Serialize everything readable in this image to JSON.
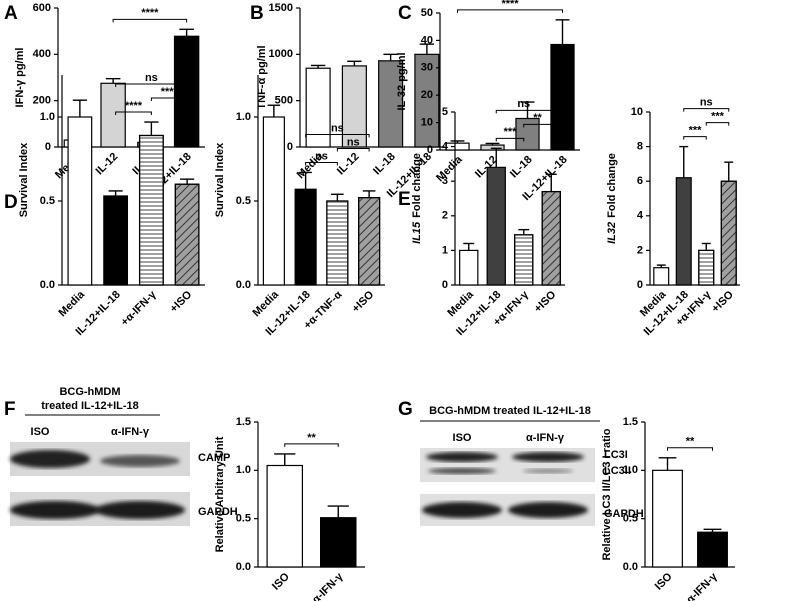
{
  "chart_data": [
    {
      "type": "bar",
      "panel": "A",
      "ylabel": "IFN-γ pg/ml",
      "categories": [
        "Media",
        "IL-12",
        "IL-18",
        "IL-12+IL-18"
      ],
      "values": [
        30,
        275,
        20,
        478
      ],
      "errors": [
        5,
        20,
        5,
        30
      ],
      "colors": [
        "#ffffff",
        "#d4d4d4",
        "#808080",
        "#000000"
      ],
      "patterns": [
        "solid",
        "solid",
        "solid",
        "solid"
      ],
      "ylim": [
        0,
        600
      ],
      "yticks": [
        0,
        200,
        400,
        600
      ],
      "significance": [
        {
          "from": 1,
          "to": 3,
          "label": "****"
        }
      ]
    },
    {
      "type": "bar",
      "panel": "B",
      "ylabel": "TNF-α  pg/ml",
      "categories": [
        "Media",
        "IL-12",
        "IL-18",
        "IL-12+IL-18"
      ],
      "values": [
        850,
        875,
        930,
        1000
      ],
      "errors": [
        30,
        50,
        70,
        110
      ],
      "colors": [
        "#ffffff",
        "#d4d4d4",
        "#808080",
        "#808080"
      ],
      "patterns": [
        "solid",
        "solid",
        "solid",
        "solid"
      ],
      "ylim": [
        0,
        1500
      ],
      "yticks": [
        0,
        500,
        1000,
        1500
      ],
      "significance": []
    },
    {
      "type": "bar",
      "panel": "C",
      "ylabel": "IL-32 pg/ml",
      "categories": [
        "Media",
        "IL-12",
        "IL-18",
        "IL-12+IL-18"
      ],
      "values": [
        2.5,
        1.8,
        11.5,
        38.5
      ],
      "errors": [
        0.8,
        0.6,
        6,
        9
      ],
      "colors": [
        "#ffffff",
        "#d4d4d4",
        "#808080",
        "#000000"
      ],
      "patterns": [
        "solid",
        "solid",
        "solid",
        "solid"
      ],
      "ylim": [
        0,
        50
      ],
      "yticks": [
        0,
        10,
        20,
        30,
        40,
        50
      ],
      "significance": [
        {
          "from": 0,
          "to": 3,
          "label": "****"
        }
      ]
    },
    {
      "type": "bar",
      "panel": "D",
      "ylabel": "Survival Index",
      "categories": [
        "Media",
        "IL-12+IL-18",
        "+α-IFN-γ",
        "+ISO"
      ],
      "values": [
        1.0,
        0.53,
        0.89,
        0.6
      ],
      "errors": [
        0.1,
        0.03,
        0.08,
        0.03
      ],
      "colors": [
        "#ffffff",
        "#000000",
        "#ffffff",
        "#a0a0a0"
      ],
      "patterns": [
        "solid",
        "solid",
        "horizontal",
        "diagonal"
      ],
      "ylim": [
        0,
        1.25
      ],
      "yticks": [
        {
          "value": 0,
          "label": "0.0"
        },
        {
          "value": 0.5,
          "label": "0.5"
        },
        {
          "value": 1,
          "label": "1.0"
        }
      ],
      "significance": [
        {
          "from": 1,
          "to": 2,
          "label": "****"
        },
        {
          "from": 2,
          "to": 3,
          "label": "****"
        },
        {
          "from": 1,
          "to": 3,
          "label": "ns"
        }
      ]
    },
    {
      "type": "bar",
      "ylabel": "Survival Index",
      "categories": [
        "Media",
        "IL-12+IL-18",
        "+α-TNF-α",
        "+ISO"
      ],
      "values": [
        1.0,
        0.57,
        0.5,
        0.52
      ],
      "errors": [
        0.07,
        0.1,
        0.04,
        0.04
      ],
      "colors": [
        "#ffffff",
        "#000000",
        "#ffffff",
        "#a0a0a0"
      ],
      "patterns": [
        "solid",
        "solid",
        "horizontal",
        "diagonal"
      ],
      "ylim": [
        0,
        1.25
      ],
      "yticks": [
        {
          "value": 0,
          "label": "0.0"
        },
        {
          "value": 0.5,
          "label": "0.5"
        },
        {
          "value": 1,
          "label": "1.0"
        }
      ],
      "significance": [
        {
          "from": 1,
          "to": 2,
          "label": "ns"
        },
        {
          "from": 2,
          "to": 3,
          "label": "ns"
        },
        {
          "from": 1,
          "to": 3,
          "label": "ns"
        }
      ]
    },
    {
      "type": "bar",
      "panel": "E",
      "ylabel_gene": "IL15",
      "ylabel": "Fold change",
      "categories": [
        "Media",
        "IL-12+IL-18",
        "+α-IFN-γ",
        "+ISO"
      ],
      "values": [
        1.0,
        3.4,
        1.45,
        2.7
      ],
      "errors": [
        0.2,
        0.55,
        0.15,
        0.5
      ],
      "colors": [
        "#ffffff",
        "#404040",
        "#ffffff",
        "#a0a0a0"
      ],
      "patterns": [
        "solid",
        "solid",
        "horizontal",
        "diagonal"
      ],
      "ylim": [
        0,
        5
      ],
      "yticks": [
        0,
        1,
        2,
        3,
        4,
        5
      ],
      "significance": [
        {
          "from": 1,
          "to": 2,
          "label": "***"
        },
        {
          "from": 2,
          "to": 3,
          "label": "**"
        },
        {
          "from": 1,
          "to": 3,
          "label": "ns"
        }
      ]
    },
    {
      "type": "bar",
      "ylabel_gene": "IL32",
      "ylabel": "Fold change",
      "categories": [
        "Media",
        "IL-12+IL-18",
        "+α-IFN-γ",
        "+ISO"
      ],
      "values": [
        1.0,
        6.2,
        2.0,
        6.0
      ],
      "errors": [
        0.15,
        1.8,
        0.4,
        1.1
      ],
      "colors": [
        "#ffffff",
        "#404040",
        "#ffffff",
        "#a0a0a0"
      ],
      "patterns": [
        "solid",
        "solid",
        "horizontal",
        "diagonal"
      ],
      "ylim": [
        0,
        10
      ],
      "yticks": [
        0,
        2,
        4,
        6,
        8,
        10
      ],
      "significance": [
        {
          "from": 1,
          "to": 2,
          "label": "***"
        },
        {
          "from": 2,
          "to": 3,
          "label": "***"
        },
        {
          "from": 1,
          "to": 3,
          "label": "ns"
        }
      ]
    },
    {
      "type": "bar",
      "panel": "F",
      "ylabel": "Relative Arbitrary Unit",
      "categories": [
        "ISO",
        "α-IFN-γ"
      ],
      "values": [
        1.05,
        0.51
      ],
      "errors": [
        0.12,
        0.12
      ],
      "colors": [
        "#ffffff",
        "#000000"
      ],
      "patterns": [
        "solid",
        "solid"
      ],
      "ylim": [
        0,
        1.5
      ],
      "yticks": [
        {
          "value": 0,
          "label": "0.0"
        },
        {
          "value": 0.5,
          "label": "0.5"
        },
        {
          "value": 1,
          "label": "1.0"
        },
        {
          "value": 1.5,
          "label": "1.5"
        }
      ],
      "significance": [
        {
          "from": 0,
          "to": 1,
          "label": "**"
        }
      ]
    },
    {
      "type": "bar",
      "panel": "G",
      "ylabel": "Relative LC3 II/LC3 I ratio",
      "categories": [
        "ISO",
        "α-IFN-γ"
      ],
      "values": [
        1.0,
        0.36
      ],
      "errors": [
        0.13,
        0.03
      ],
      "colors": [
        "#ffffff",
        "#000000"
      ],
      "patterns": [
        "solid",
        "solid"
      ],
      "ylim": [
        0,
        1.5
      ],
      "yticks": [
        {
          "value": 0,
          "label": "0.0"
        },
        {
          "value": 0.5,
          "label": "0.5"
        },
        {
          "value": 1,
          "label": "1.0"
        },
        {
          "value": 1.5,
          "label": "1.5"
        }
      ],
      "significance": [
        {
          "from": 0,
          "to": 1,
          "label": "**"
        }
      ]
    }
  ],
  "blot_f": {
    "title_lines": [
      "BCG-hMDM",
      "treated IL-12+IL-18"
    ],
    "lanes": [
      "ISO",
      "α-IFN-γ"
    ],
    "bands": [
      "CAMP",
      "GAPDH"
    ]
  },
  "blot_g": {
    "title": "BCG-hMDM treated IL-12+IL-18",
    "lanes": [
      "ISO",
      "α-IFN-γ"
    ],
    "bands": [
      "LC3I",
      "LC3II",
      "GAPDH"
    ]
  }
}
